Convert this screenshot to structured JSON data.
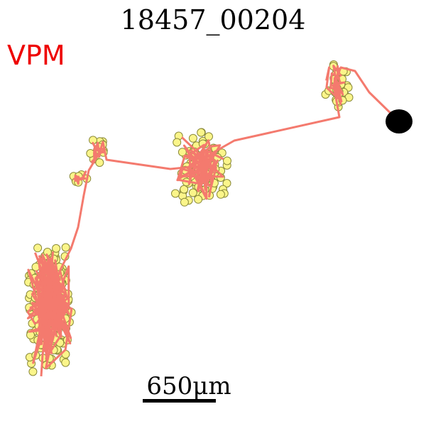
{
  "title": "18457_00204",
  "region": {
    "label": "VPM",
    "color": "#ee0000"
  },
  "scale_bar": {
    "label": "650μm"
  },
  "colors": {
    "branch": "#f47a6e",
    "node_fill": "#fbf58a",
    "node_stroke": "#8a8a3a",
    "soma": "#000000"
  }
}
